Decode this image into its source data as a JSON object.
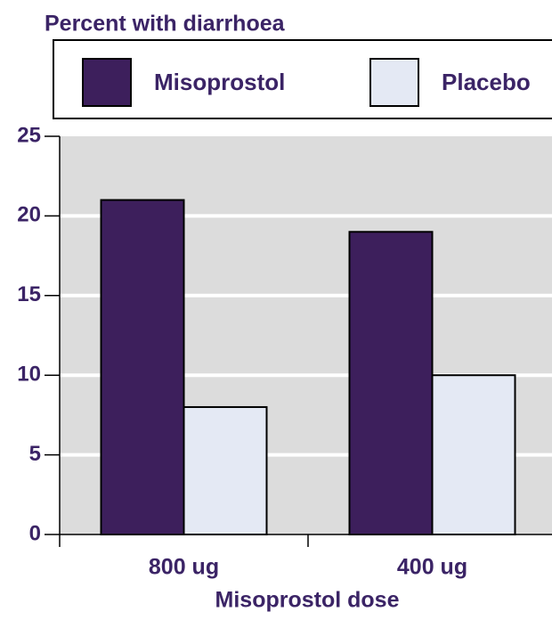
{
  "chart_data": {
    "type": "bar",
    "title": "Percent with diarrhoea",
    "x_label": "Misoprostol dose",
    "categories": [
      "800 ug",
      "400 ug"
    ],
    "series": [
      {
        "name": "Misoprostol",
        "color": "#3d1f5c",
        "values": [
          21,
          19
        ]
      },
      {
        "name": "Placebo",
        "color": "#e4e9f4",
        "values": [
          8,
          10
        ]
      }
    ],
    "ylim": [
      0,
      25
    ],
    "yticks": [
      0,
      5,
      10,
      15,
      20,
      25
    ],
    "grid": true,
    "legend": "top"
  }
}
